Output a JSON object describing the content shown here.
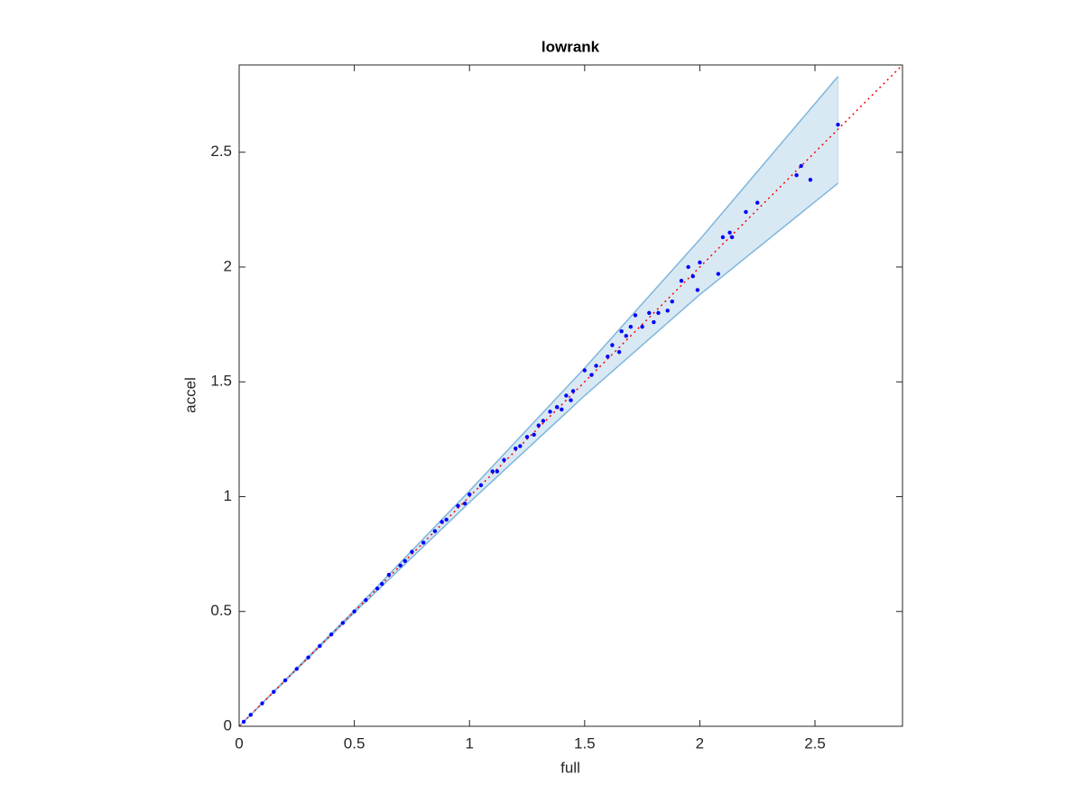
{
  "chart_data": {
    "type": "scatter",
    "title": "lowrank",
    "x_label": "full",
    "y_label": "accel",
    "xlim": [
      0,
      2.88
    ],
    "ylim": [
      0,
      2.88
    ],
    "xticks": [
      0,
      0.5,
      1,
      1.5,
      2,
      2.5
    ],
    "yticks": [
      0,
      0.5,
      1,
      1.5,
      2,
      2.5
    ],
    "band": {
      "color": "#7fb6dc",
      "x": [
        0,
        0.5,
        1,
        1.5,
        2,
        2.6
      ],
      "upper": [
        0,
        0.505,
        1.025,
        1.56,
        2.12,
        2.83
      ],
      "lower": [
        0,
        0.495,
        0.975,
        1.44,
        1.88,
        2.365
      ]
    },
    "reference_line": {
      "color": "#ff0000",
      "x": [
        0,
        2.88
      ],
      "values": [
        0,
        2.88
      ]
    },
    "series": [
      {
        "color": "#0000ff",
        "x": [
          2.6,
          2.48,
          2.44,
          2.42,
          2.25,
          2.2,
          2.13,
          2.14,
          2.1,
          2.08,
          2.0,
          1.99,
          1.97,
          1.95,
          1.92,
          1.88,
          1.86,
          1.82,
          1.8,
          1.78,
          1.75,
          1.72,
          1.7,
          1.68,
          1.66,
          1.65,
          1.62,
          1.6,
          1.55,
          1.53,
          1.5,
          1.45,
          1.44,
          1.42,
          1.4,
          1.38,
          1.35,
          1.32,
          1.3,
          1.28,
          1.25,
          1.22,
          1.2,
          1.15,
          1.12,
          1.1,
          1.05,
          1.0,
          0.98,
          0.95,
          0.9,
          0.88,
          0.85,
          0.8,
          0.75,
          0.72,
          0.7,
          0.65,
          0.62,
          0.6,
          0.55,
          0.5,
          0.45,
          0.4,
          0.35,
          0.3,
          0.25,
          0.2,
          0.15,
          0.1,
          0.05,
          0.02
        ],
        "values": [
          2.62,
          2.38,
          2.44,
          2.4,
          2.28,
          2.24,
          2.15,
          2.13,
          2.13,
          1.97,
          2.02,
          1.9,
          1.96,
          2.0,
          1.94,
          1.85,
          1.81,
          1.8,
          1.76,
          1.8,
          1.74,
          1.79,
          1.74,
          1.7,
          1.72,
          1.63,
          1.66,
          1.61,
          1.57,
          1.53,
          1.55,
          1.46,
          1.42,
          1.44,
          1.38,
          1.39,
          1.37,
          1.33,
          1.31,
          1.27,
          1.26,
          1.22,
          1.21,
          1.16,
          1.11,
          1.11,
          1.05,
          1.01,
          0.97,
          0.96,
          0.9,
          0.89,
          0.85,
          0.8,
          0.76,
          0.72,
          0.7,
          0.66,
          0.62,
          0.6,
          0.55,
          0.5,
          0.45,
          0.4,
          0.35,
          0.3,
          0.25,
          0.2,
          0.15,
          0.1,
          0.05,
          0.02
        ]
      }
    ]
  }
}
